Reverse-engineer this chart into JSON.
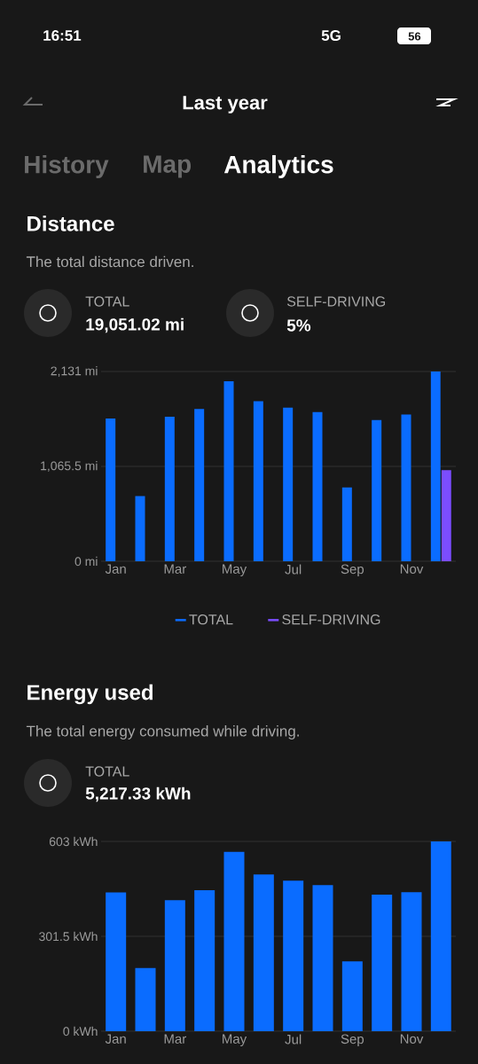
{
  "chart_data": [
    {
      "type": "bar",
      "title": "Distance",
      "subtitle": "The total distance driven.",
      "annotations": [
        "16:51",
        "5G",
        "56",
        "Last year",
        "History",
        "Map",
        "Analytics",
        "TOTAL",
        "19,051.02 mi",
        "SELF-DRIVING",
        "5%"
      ],
      "categories": [
        "Jan",
        null,
        "Mar",
        null,
        "May",
        null,
        "Jul",
        null,
        "Sep",
        null,
        "Nov",
        null
      ],
      "series": [
        {
          "name": "TOTAL",
          "color": "#0a6cff",
          "values": [
            1603,
            731,
            1623,
            1709,
            2021,
            1798,
            1726,
            1675,
            830,
            1585,
            1647,
            2131
          ]
        },
        {
          "name": "SELF-DRIVING",
          "color": "#7b4dff",
          "values": [
            null,
            null,
            null,
            null,
            null,
            null,
            null,
            null,
            null,
            null,
            null,
            1023
          ]
        }
      ],
      "ylim": [
        0,
        2131
      ],
      "yticks": [
        {
          "value": 0,
          "label": "0 mi"
        },
        {
          "value": 1065.5,
          "label": "1,065.5 mi"
        },
        {
          "value": 2131,
          "label": "2,131 mi"
        }
      ],
      "grid": "y",
      "legend": "bottom"
    },
    {
      "type": "bar",
      "title": "Energy used",
      "subtitle": "The total energy consumed while driving.",
      "annotations": [
        "TOTAL",
        "5,217.33 kWh"
      ],
      "categories": [
        "Jan",
        null,
        "Mar",
        null,
        "May",
        null,
        "Jul",
        null,
        "Sep",
        null,
        "Nov",
        null
      ],
      "values": [
        441,
        201,
        416,
        448,
        570,
        498,
        478,
        464,
        222,
        434,
        442,
        603
      ],
      "color": "#0a6cff",
      "ylim": [
        0,
        603
      ],
      "yticks": [
        {
          "value": 0,
          "label": "0 kWh"
        },
        {
          "value": 301.5,
          "label": "301.5 kWh"
        },
        {
          "value": 603,
          "label": "603 kWh"
        }
      ],
      "grid": "y"
    }
  ]
}
